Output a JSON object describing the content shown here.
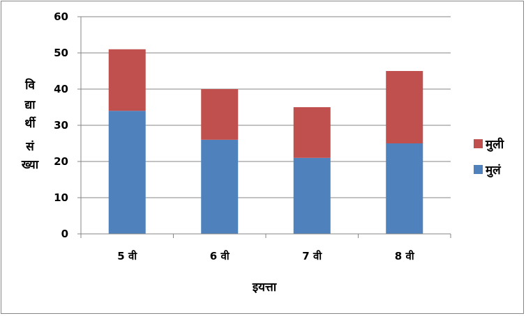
{
  "chart_data": {
    "type": "bar",
    "stacked": true,
    "categories": [
      "5 वी",
      "6 वी",
      "7 वी",
      "8 वी"
    ],
    "series": [
      {
        "name": "मुलं",
        "values": [
          34,
          26,
          21,
          25
        ],
        "color": "#4f81bd"
      },
      {
        "name": "मुली",
        "values": [
          17,
          14,
          14,
          20
        ],
        "color": "#c0504d"
      }
    ],
    "xlabel": "इयत्ता",
    "ylabel_lines": [
      "वि",
      "द्या",
      "र्थी",
      "सं",
      "ख्या"
    ],
    "ylim": [
      0,
      60
    ],
    "yticks": [
      0,
      10,
      20,
      30,
      40,
      50,
      60
    ],
    "grid": true,
    "legend_position": "right"
  }
}
